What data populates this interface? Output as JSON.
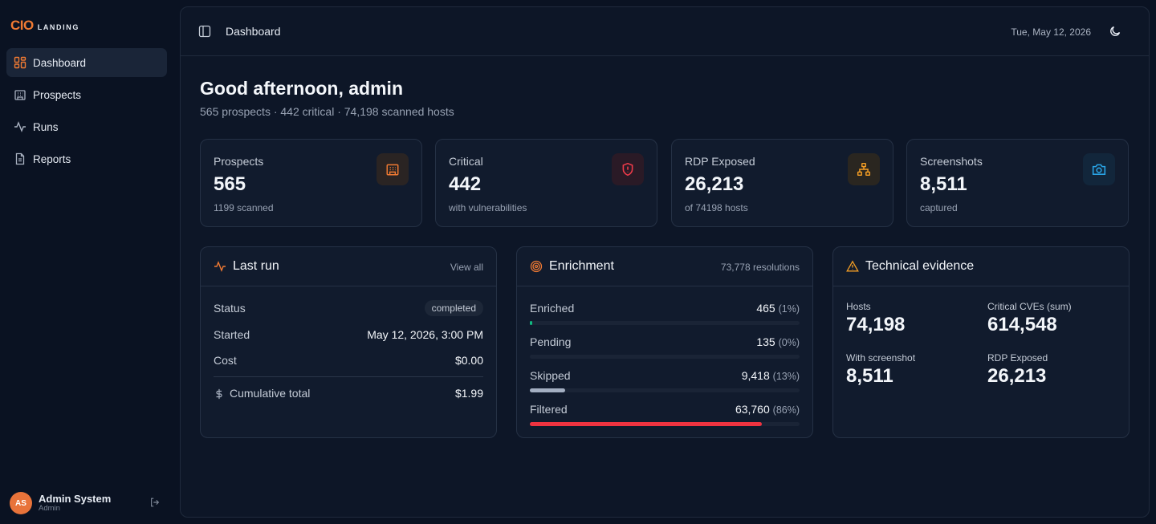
{
  "brand": {
    "logo": "CIO",
    "sub": "LANDING"
  },
  "sidebar": {
    "items": [
      {
        "label": "Dashboard",
        "icon": "dashboard-grid-icon",
        "active": true
      },
      {
        "label": "Prospects",
        "icon": "building-icon"
      },
      {
        "label": "Runs",
        "icon": "activity-icon"
      },
      {
        "label": "Reports",
        "icon": "document-icon"
      }
    ]
  },
  "user": {
    "initials": "AS",
    "name": "Admin System",
    "role": "Admin"
  },
  "header": {
    "breadcrumb": "Dashboard",
    "date": "Tue, May 12, 2026"
  },
  "greeting": {
    "title": "Good afternoon, admin",
    "subtitle": "565 prospects · 442 critical · 74,198 scanned hosts"
  },
  "stats": [
    {
      "label": "Prospects",
      "value": "565",
      "note": "1199 scanned",
      "icon": "building-icon",
      "color": "#f07a33"
    },
    {
      "label": "Critical",
      "value": "442",
      "note": "with vulnerabilities",
      "icon": "shield-alert-icon",
      "color": "#ef3b4a"
    },
    {
      "label": "RDP Exposed",
      "value": "26,213",
      "note": "of 74198 hosts",
      "icon": "network-icon",
      "color": "#f59e24"
    },
    {
      "label": "Screenshots",
      "value": "8,511",
      "note": "captured",
      "icon": "camera-icon",
      "color": "#29a4e6"
    }
  ],
  "last_run": {
    "title": "Last run",
    "view_all": "View all",
    "status_label": "Status",
    "status": "completed",
    "started_label": "Started",
    "started": "May 12, 2026, 3:00 PM",
    "cost_label": "Cost",
    "cost": "$0.00",
    "cumulative_label": "Cumulative total",
    "cumulative": "$1.99"
  },
  "enrichment": {
    "title": "Enrichment",
    "resolutions": "73,778 resolutions",
    "rows": [
      {
        "label": "Enriched",
        "value": "465",
        "pct": "(1%)",
        "fraction": 0.01,
        "color": "#10b981"
      },
      {
        "label": "Pending",
        "value": "135",
        "pct": "(0%)",
        "fraction": 0.0,
        "color": "#64748b"
      },
      {
        "label": "Skipped",
        "value": "9,418",
        "pct": "(13%)",
        "fraction": 0.13,
        "color": "#a3afc2"
      },
      {
        "label": "Filtered",
        "value": "63,760",
        "pct": "(86%)",
        "fraction": 0.86,
        "color": "#ef3340"
      }
    ]
  },
  "evidence": {
    "title": "Technical evidence",
    "tiles": [
      {
        "label": "Hosts",
        "value": "74,198"
      },
      {
        "label": "Critical CVEs (sum)",
        "value": "614,548"
      },
      {
        "label": "With screenshot",
        "value": "8,511"
      },
      {
        "label": "RDP Exposed",
        "value": "26,213"
      }
    ]
  }
}
